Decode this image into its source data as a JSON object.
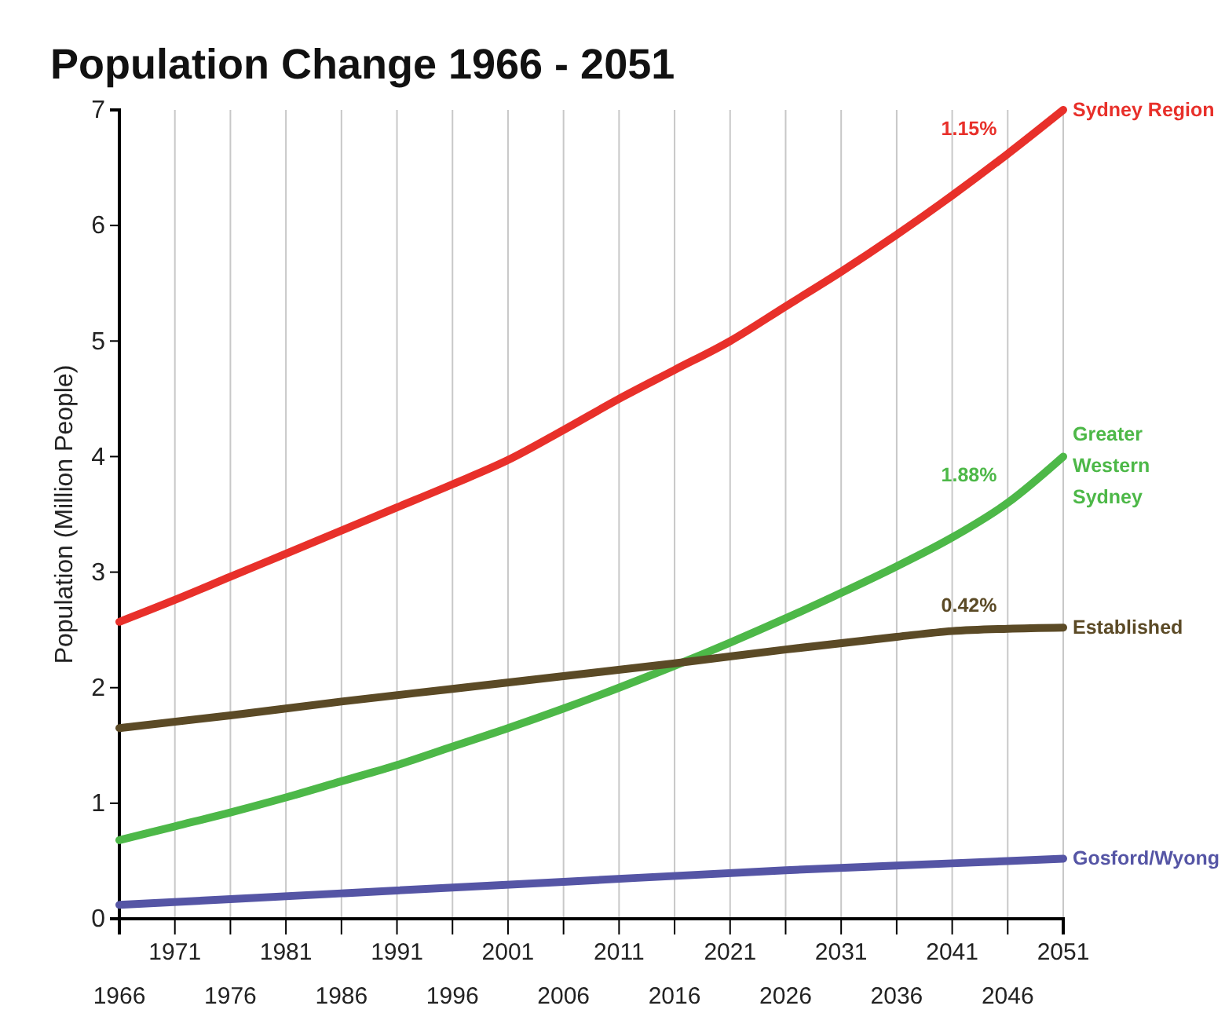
{
  "chart_data": {
    "type": "line",
    "title": "Population Change 1966 - 2051",
    "ylabel": "Population (Million People)",
    "xlim": [
      1966,
      2051
    ],
    "xticks": [
      1966,
      {
        "value": 1971,
        "label": null
      },
      1976,
      {
        "value": 1981,
        "label": null
      },
      1986,
      {
        "value": 1991,
        "label": null
      },
      1996,
      {
        "value": 2001,
        "label": null
      },
      2006,
      {
        "value": 2011,
        "label": null
      },
      2016,
      {
        "value": 2021,
        "label": null
      },
      2026,
      {
        "value": 2031,
        "label": null
      },
      2036,
      {
        "value": 2041,
        "label": null
      },
      2046,
      {
        "value": 2051,
        "label": null
      }
    ],
    "x2lim": [
      1966,
      2051
    ],
    "x2ticks": [
      1971,
      1981,
      1991,
      2001,
      2011,
      2021,
      2031,
      2041,
      2051
    ],
    "ylim": [
      0,
      7
    ],
    "yticks": [
      0,
      1,
      2,
      3,
      4,
      5,
      6,
      7
    ],
    "grid": "x",
    "legend": false,
    "marker": "none",
    "line_style": "solid",
    "series": [
      {
        "name": "Sydney Region",
        "color": "#e8302a",
        "x": [
          1966,
          1971,
          1976,
          1981,
          1986,
          1991,
          1996,
          2001,
          2006,
          2011,
          2016,
          2021,
          2026,
          2031,
          2036,
          2041,
          2046,
          2051
        ],
        "values": [
          2.57,
          2.76,
          2.96,
          3.16,
          3.36,
          3.56,
          3.76,
          3.97,
          4.23,
          4.5,
          4.75,
          5.0,
          5.3,
          5.6,
          5.92,
          6.26,
          6.62,
          7.0
        ]
      },
      {
        "name": "Greater Western Sydney",
        "color": "#4db848",
        "x": [
          1966,
          1971,
          1976,
          1981,
          1986,
          1991,
          1996,
          2001,
          2006,
          2011,
          2016,
          2021,
          2026,
          2031,
          2036,
          2041,
          2046,
          2051
        ],
        "values": [
          0.68,
          0.8,
          0.92,
          1.05,
          1.19,
          1.33,
          1.49,
          1.65,
          1.82,
          2.0,
          2.19,
          2.39,
          2.6,
          2.82,
          3.05,
          3.3,
          3.6,
          4.0
        ]
      },
      {
        "name": "Established",
        "color": "#5b4a26",
        "x": [
          1966,
          1976,
          1986,
          1996,
          2006,
          2016,
          2026,
          2036,
          2041,
          2046,
          2051
        ],
        "values": [
          1.65,
          1.76,
          1.88,
          1.99,
          2.1,
          2.21,
          2.33,
          2.44,
          2.49,
          2.51,
          2.52
        ]
      },
      {
        "name": "Gosford/Wyong",
        "color": "#5555a5",
        "x": [
          1966,
          1986,
          2006,
          2026,
          2041,
          2051
        ],
        "values": [
          0.12,
          0.22,
          0.32,
          0.42,
          0.48,
          0.52
        ]
      }
    ],
    "annotations": [
      "1.15%",
      "1.88%",
      "0.42%"
    ]
  }
}
